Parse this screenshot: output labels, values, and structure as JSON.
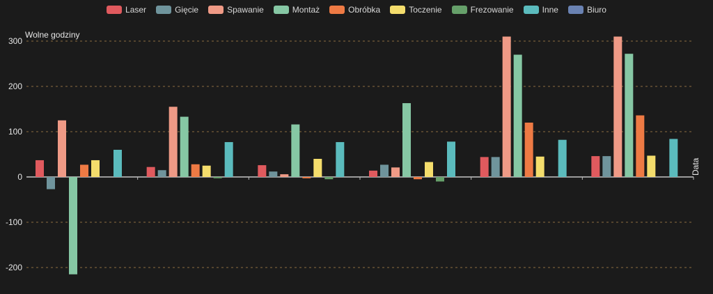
{
  "chart_data": {
    "type": "bar",
    "ylabel": "Wolne godziny",
    "xlabel": "Data",
    "ylim": [
      -220,
      310
    ],
    "yticks": [
      -200,
      -100,
      0,
      100,
      200,
      300
    ],
    "grid": true,
    "legend_position": "top",
    "categories": [
      "",
      "",
      "",
      "",
      "",
      ""
    ],
    "series": [
      {
        "name": "Laser",
        "color": "#e05a5e",
        "values": [
          37,
          22,
          26,
          14,
          44,
          46
        ]
      },
      {
        "name": "Gięcie",
        "color": "#6f949c",
        "values": [
          -27,
          15,
          12,
          27,
          44,
          46
        ]
      },
      {
        "name": "Spawanie",
        "color": "#ef9a86",
        "values": [
          125,
          155,
          6,
          21,
          310,
          310
        ]
      },
      {
        "name": "Montaż",
        "color": "#86c7a4",
        "values": [
          -215,
          133,
          116,
          163,
          270,
          272
        ]
      },
      {
        "name": "Obróbka",
        "color": "#ee7a44",
        "values": [
          27,
          28,
          -3,
          -5,
          120,
          136
        ]
      },
      {
        "name": "Toczenie",
        "color": "#f4dd6c",
        "values": [
          37,
          25,
          40,
          33,
          45,
          47
        ]
      },
      {
        "name": "Frezowanie",
        "color": "#66a06a",
        "values": [
          0,
          -3,
          -5,
          -10,
          0,
          0
        ]
      },
      {
        "name": "Inne",
        "color": "#5bbbbd",
        "values": [
          60,
          77,
          77,
          78,
          82,
          84
        ]
      },
      {
        "name": "Biuro",
        "color": "#6a82b2",
        "values": [
          0,
          0,
          0,
          0,
          0,
          0
        ]
      }
    ]
  }
}
